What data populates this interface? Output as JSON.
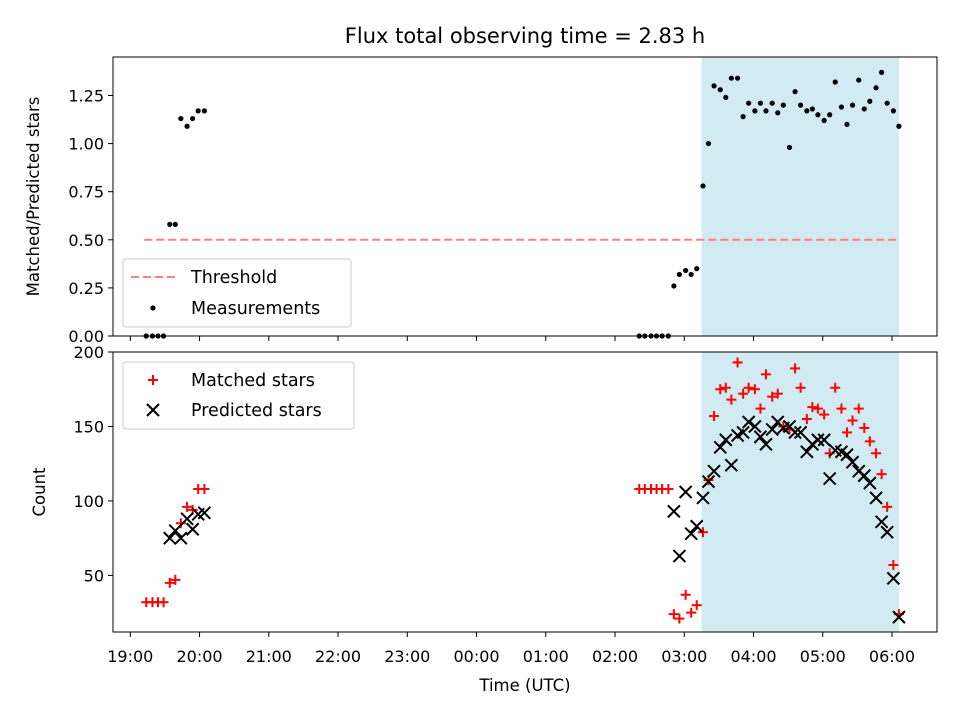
{
  "chart_data": [
    {
      "type": "scatter",
      "title": "Flux total observing time = 2.83 h",
      "ylabel": "Matched/Predicted stars",
      "ylim": [
        0,
        1.45
      ],
      "yticks": [
        "0.00",
        "0.25",
        "0.50",
        "0.75",
        "1.00",
        "1.25"
      ],
      "x_range_hours": [
        -5.25,
        6.65
      ],
      "shaded_region_hours": [
        3.25,
        6.1
      ],
      "threshold": {
        "label": "Threshold",
        "value": 0.5,
        "x_start_hours": -4.8,
        "x_end_hours": 6.1,
        "color": "#ff7f7f"
      },
      "series": [
        {
          "name": "Measurements",
          "color": "#000000",
          "points": [
            [
              -4.77,
              0.0
            ],
            [
              -4.68,
              0.0
            ],
            [
              -4.6,
              0.0
            ],
            [
              -4.52,
              0.0
            ],
            [
              -4.43,
              0.58
            ],
            [
              -4.35,
              0.58
            ],
            [
              -4.27,
              1.13
            ],
            [
              -4.18,
              1.09
            ],
            [
              -4.1,
              1.13
            ],
            [
              -4.02,
              1.17
            ],
            [
              -3.93,
              1.17
            ],
            [
              2.35,
              0.0
            ],
            [
              2.43,
              0.0
            ],
            [
              2.52,
              0.0
            ],
            [
              2.6,
              0.0
            ],
            [
              2.68,
              0.0
            ],
            [
              2.77,
              0.0
            ],
            [
              2.85,
              0.26
            ],
            [
              2.93,
              0.32
            ],
            [
              3.02,
              0.34
            ],
            [
              3.1,
              0.32
            ],
            [
              3.18,
              0.35
            ],
            [
              3.27,
              0.78
            ],
            [
              3.35,
              1.0
            ],
            [
              3.43,
              1.3
            ],
            [
              3.52,
              1.28
            ],
            [
              3.6,
              1.24
            ],
            [
              3.68,
              1.34
            ],
            [
              3.77,
              1.34
            ],
            [
              3.85,
              1.14
            ],
            [
              3.93,
              1.21
            ],
            [
              4.02,
              1.17
            ],
            [
              4.1,
              1.21
            ],
            [
              4.18,
              1.17
            ],
            [
              4.27,
              1.21
            ],
            [
              4.35,
              1.16
            ],
            [
              4.43,
              1.2
            ],
            [
              4.52,
              0.98
            ],
            [
              4.6,
              1.27
            ],
            [
              4.68,
              1.2
            ],
            [
              4.77,
              1.17
            ],
            [
              4.85,
              1.18
            ],
            [
              4.93,
              1.15
            ],
            [
              5.02,
              1.12
            ],
            [
              5.1,
              1.15
            ],
            [
              5.18,
              1.32
            ],
            [
              5.27,
              1.19
            ],
            [
              5.35,
              1.1
            ],
            [
              5.43,
              1.2
            ],
            [
              5.52,
              1.33
            ],
            [
              5.6,
              1.18
            ],
            [
              5.68,
              1.22
            ],
            [
              5.77,
              1.29
            ],
            [
              5.85,
              1.37
            ],
            [
              5.93,
              1.21
            ],
            [
              6.02,
              1.17
            ],
            [
              6.1,
              1.09
            ]
          ]
        }
      ],
      "legend": {
        "location": "lower-left",
        "entries": [
          "Threshold",
          "Measurements"
        ]
      }
    },
    {
      "type": "scatter",
      "xlabel": "Time (UTC)",
      "ylabel": "Count",
      "ylim": [
        12,
        200
      ],
      "yticks": [
        "50",
        "100",
        "150",
        "200"
      ],
      "ytick_values": [
        50,
        100,
        150,
        200
      ],
      "xticks": [
        "19:00",
        "20:00",
        "21:00",
        "22:00",
        "23:00",
        "00:00",
        "01:00",
        "02:00",
        "03:00",
        "04:00",
        "05:00",
        "06:00"
      ],
      "xtick_hours": [
        -5,
        -4,
        -3,
        -2,
        -1,
        0,
        1,
        2,
        3,
        4,
        5,
        6
      ],
      "x_range_hours": [
        -5.25,
        6.65
      ],
      "shaded_region_hours": [
        3.25,
        6.1
      ],
      "series": [
        {
          "name": "Matched stars",
          "marker": "+",
          "color": "#ff0000",
          "points": [
            [
              -4.77,
              32
            ],
            [
              -4.68,
              32
            ],
            [
              -4.6,
              32
            ],
            [
              -4.52,
              32
            ],
            [
              -4.43,
              45
            ],
            [
              -4.35,
              47
            ],
            [
              -4.27,
              85
            ],
            [
              -4.18,
              96
            ],
            [
              -4.1,
              94
            ],
            [
              -4.02,
              108
            ],
            [
              -3.93,
              108
            ],
            [
              2.35,
              108
            ],
            [
              2.43,
              108
            ],
            [
              2.52,
              108
            ],
            [
              2.6,
              108
            ],
            [
              2.68,
              108
            ],
            [
              2.77,
              108
            ],
            [
              2.85,
              24
            ],
            [
              2.93,
              21
            ],
            [
              3.02,
              37
            ],
            [
              3.1,
              25
            ],
            [
              3.18,
              30
            ],
            [
              3.27,
              79
            ],
            [
              3.35,
              114
            ],
            [
              3.43,
              157
            ],
            [
              3.52,
              175
            ],
            [
              3.6,
              176
            ],
            [
              3.68,
              168
            ],
            [
              3.77,
              193
            ],
            [
              3.85,
              172
            ],
            [
              3.93,
              176
            ],
            [
              4.02,
              175
            ],
            [
              4.1,
              162
            ],
            [
              4.18,
              185
            ],
            [
              4.27,
              170
            ],
            [
              4.35,
              172
            ],
            [
              4.43,
              150
            ],
            [
              4.52,
              148
            ],
            [
              4.6,
              189
            ],
            [
              4.68,
              176
            ],
            [
              4.77,
              155
            ],
            [
              4.85,
              163
            ],
            [
              4.93,
              162
            ],
            [
              5.02,
              158
            ],
            [
              5.1,
              132
            ],
            [
              5.18,
              176
            ],
            [
              5.27,
              162
            ],
            [
              5.35,
              146
            ],
            [
              5.43,
              154
            ],
            [
              5.52,
              162
            ],
            [
              5.6,
              149
            ],
            [
              5.68,
              140
            ],
            [
              5.77,
              132
            ],
            [
              5.85,
              118
            ],
            [
              5.93,
              96
            ],
            [
              6.02,
              57
            ],
            [
              6.1,
              24
            ]
          ]
        },
        {
          "name": "Predicted stars",
          "marker": "x",
          "color": "#000000",
          "points": [
            [
              -4.43,
              75
            ],
            [
              -4.35,
              80
            ],
            [
              -4.27,
              75
            ],
            [
              -4.18,
              88
            ],
            [
              -4.1,
              81
            ],
            [
              -4.02,
              91
            ],
            [
              -3.93,
              92
            ],
            [
              2.85,
              93
            ],
            [
              2.93,
              63
            ],
            [
              3.02,
              106
            ],
            [
              3.1,
              78
            ],
            [
              3.18,
              83
            ],
            [
              3.27,
              102
            ],
            [
              3.35,
              113
            ],
            [
              3.43,
              120
            ],
            [
              3.52,
              136
            ],
            [
              3.6,
              141
            ],
            [
              3.68,
              124
            ],
            [
              3.77,
              144
            ],
            [
              3.85,
              146
            ],
            [
              3.93,
              153
            ],
            [
              4.02,
              150
            ],
            [
              4.1,
              143
            ],
            [
              4.18,
              138
            ],
            [
              4.27,
              148
            ],
            [
              4.35,
              153
            ],
            [
              4.43,
              149
            ],
            [
              4.52,
              150
            ],
            [
              4.6,
              146
            ],
            [
              4.68,
              146
            ],
            [
              4.77,
              133
            ],
            [
              4.85,
              138
            ],
            [
              4.93,
              141
            ],
            [
              5.02,
              141
            ],
            [
              5.1,
              115
            ],
            [
              5.18,
              134
            ],
            [
              5.27,
              133
            ],
            [
              5.35,
              131
            ],
            [
              5.43,
              126
            ],
            [
              5.52,
              120
            ],
            [
              5.6,
              117
            ],
            [
              5.68,
              112
            ],
            [
              5.77,
              102
            ],
            [
              5.85,
              86
            ],
            [
              5.93,
              79
            ],
            [
              6.02,
              48
            ],
            [
              6.1,
              22
            ]
          ]
        }
      ],
      "legend": {
        "location": "top-left",
        "entries": [
          "Matched stars",
          "Predicted stars"
        ]
      }
    }
  ],
  "colors": {
    "shade": "#add8e6",
    "threshold": "#ff7f7f",
    "matched": "#ff0000",
    "predicted": "#000000"
  }
}
